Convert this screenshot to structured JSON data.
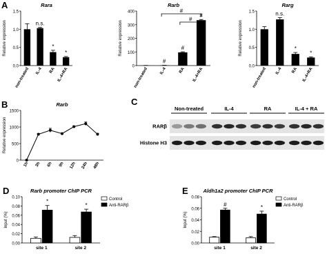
{
  "chart_data": [
    {
      "type": "bar",
      "panel": "A",
      "title": "Rara",
      "ylabel": "Relative expression",
      "categories": [
        "non-treated",
        "IL-4",
        "RA",
        "IL-4+RA"
      ],
      "values": [
        1.0,
        1.03,
        0.37,
        0.23
      ],
      "errors": [
        0.15,
        0.02,
        0.05,
        0.02
      ],
      "color": "#000000",
      "ylim": [
        0,
        1.5
      ],
      "yticks": [
        {
          "value": 0,
          "label": "0.0"
        },
        {
          "value": 0.5,
          "label": "0.5"
        },
        {
          "value": 1,
          "label": "1.0"
        },
        {
          "value": 1.5,
          "label": "1.5"
        }
      ],
      "value_annotations": [
        null,
        "n.s.",
        "*",
        "*"
      ]
    },
    {
      "type": "bar",
      "title": "Rarb",
      "ylabel": "Relative expression",
      "categories": [
        "non-treated",
        "IL-4",
        "RA",
        "IL-4+RA"
      ],
      "values": [
        1,
        2,
        97,
        333
      ],
      "errors": [
        0.5,
        0.5,
        4,
        5
      ],
      "color": "#000000",
      "ylim": [
        0,
        400
      ],
      "yticks": [
        0,
        100,
        200,
        300,
        400
      ],
      "value_annotations": [
        null,
        "#",
        "#",
        "#"
      ],
      "bracket_labels": [
        "#",
        "#"
      ]
    },
    {
      "type": "bar",
      "title": "Rarg",
      "ylabel": "Relative expression",
      "categories": [
        "non-treated",
        "IL-4",
        "RA",
        "IL-4+RA"
      ],
      "values": [
        1.0,
        1.27,
        0.32,
        0.22
      ],
      "errors": [
        0.07,
        0.05,
        0.04,
        0.02
      ],
      "color": "#000000",
      "ylim": [
        0,
        1.5
      ],
      "yticks": [
        {
          "value": 0,
          "label": "0.0"
        },
        {
          "value": 0.5,
          "label": "0.5"
        },
        {
          "value": 1,
          "label": "1.0"
        },
        {
          "value": 1.5,
          "label": "1.5"
        }
      ],
      "value_annotations": [
        null,
        "n.s.",
        "*",
        "*"
      ]
    },
    {
      "type": "line",
      "panel": "B",
      "title": "Rarb",
      "ylabel": "Relative expression",
      "categories": [
        "1h",
        "3h",
        "6h",
        "9h",
        "12h",
        "24h",
        "48h"
      ],
      "values": [
        0,
        780,
        900,
        800,
        1010,
        1100,
        780
      ],
      "errors": [
        0,
        20,
        60,
        20,
        20,
        50,
        30
      ],
      "color": "#000000",
      "ylim": [
        0,
        1500
      ],
      "yticks": [
        0,
        500,
        1000,
        1500
      ]
    },
    {
      "type": "grouped_bar",
      "panel": "D",
      "title": "Rarb promoter ChIP PCR",
      "ylabel": "Input (%)",
      "categories": [
        "site 1",
        "site 2"
      ],
      "series": [
        {
          "name": "Control",
          "color": "#ffffff",
          "values": [
            0.01,
            0.012
          ],
          "errors": [
            0.003,
            0.004
          ]
        },
        {
          "name": "Anti-RARβ",
          "color": "#000000",
          "values": [
            0.071,
            0.067
          ],
          "errors": [
            0.01,
            0.006
          ]
        }
      ],
      "ylim": [
        0,
        0.1
      ],
      "yticks": [
        {
          "value": 0,
          "label": "0.00"
        },
        {
          "value": 0.02,
          "label": "0.02"
        },
        {
          "value": 0.04,
          "label": "0.04"
        },
        {
          "value": 0.06,
          "label": "0.06"
        },
        {
          "value": 0.08,
          "label": "0.08"
        },
        {
          "value": 0.1,
          "label": "0.10"
        }
      ],
      "value_annotations": [
        "*",
        "*"
      ]
    },
    {
      "type": "grouped_bar",
      "panel": "E",
      "title": "Aldh1a2 promoter ChIP PCR",
      "ylabel": "Input (%)",
      "categories": [
        "site 1",
        "site 2"
      ],
      "series": [
        {
          "name": "Control",
          "color": "#ffffff",
          "values": [
            0.01,
            0.009
          ],
          "errors": [
            0.001,
            0.002
          ]
        },
        {
          "name": "Anti-RARβ",
          "color": "#000000",
          "values": [
            0.057,
            0.05
          ],
          "errors": [
            0.003,
            0.005
          ]
        }
      ],
      "ylim": [
        0,
        0.08
      ],
      "yticks": [
        {
          "value": 0,
          "label": "0.00"
        },
        {
          "value": 0.02,
          "label": "0.02"
        },
        {
          "value": 0.04,
          "label": "0.04"
        },
        {
          "value": 0.06,
          "label": "0.06"
        },
        {
          "value": 0.08,
          "label": "0.08"
        }
      ],
      "value_annotations": [
        "#",
        "*"
      ]
    }
  ],
  "blot": {
    "panel": "C",
    "groups": [
      "Non-treated",
      "IL-4",
      "RA",
      "IL-4 + RA"
    ],
    "rows": [
      "RARβ",
      "Histone H3"
    ]
  }
}
